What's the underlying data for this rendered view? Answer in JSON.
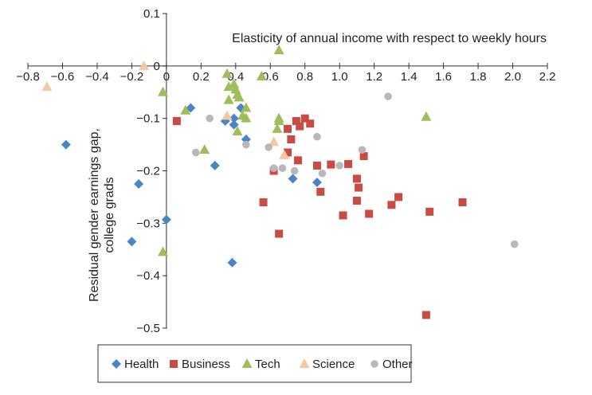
{
  "chart_data": {
    "type": "scatter",
    "title": "",
    "xlabel": "Elasticity of annual income with respect to weekly hours",
    "ylabel_lines": [
      "Residual gender earnings gap,",
      "college grads"
    ],
    "xlim": [
      -0.8,
      2.2
    ],
    "ylim": [
      -0.5,
      0.1
    ],
    "xticks": [
      "−0.8",
      "−0.6",
      "−0.4",
      "−0.2",
      "0",
      "0.2",
      "0.4",
      "0.6",
      "0.8",
      "1.0",
      "1.2",
      "1.4",
      "1.6",
      "1.8",
      "2.0",
      "2.2"
    ],
    "xtick_values": [
      -0.8,
      -0.6,
      -0.4,
      -0.2,
      0,
      0.2,
      0.4,
      0.6,
      0.8,
      1.0,
      1.2,
      1.4,
      1.6,
      1.8,
      2.0,
      2.2
    ],
    "yticks": [
      "0.1",
      "0",
      "−0.1",
      "−0.2",
      "−0.3",
      "−0.4",
      "−0.5"
    ],
    "ytick_values": [
      0.1,
      0,
      -0.1,
      -0.2,
      -0.3,
      -0.4,
      -0.5
    ],
    "grid": false,
    "legend_position": "bottom",
    "series": [
      {
        "name": "Health",
        "marker": "diamond",
        "color": "#4a86c5",
        "points": [
          [
            -0.58,
            -0.15
          ],
          [
            -0.16,
            -0.225
          ],
          [
            -0.2,
            -0.335
          ],
          [
            0.0,
            -0.293
          ],
          [
            0.14,
            -0.08
          ],
          [
            0.28,
            -0.19
          ],
          [
            0.34,
            -0.105
          ],
          [
            0.38,
            -0.375
          ],
          [
            0.39,
            -0.112
          ],
          [
            0.43,
            -0.08
          ],
          [
            0.46,
            -0.14
          ],
          [
            0.73,
            -0.215
          ],
          [
            0.87,
            -0.222
          ],
          [
            0.39,
            -0.1
          ]
        ]
      },
      {
        "name": "Business",
        "marker": "square",
        "color": "#c84b44",
        "points": [
          [
            0.06,
            -0.105
          ],
          [
            0.56,
            -0.26
          ],
          [
            0.62,
            -0.2
          ],
          [
            0.65,
            -0.32
          ],
          [
            0.7,
            -0.12
          ],
          [
            0.72,
            -0.14
          ],
          [
            0.75,
            -0.105
          ],
          [
            0.77,
            -0.115
          ],
          [
            0.8,
            -0.1
          ],
          [
            0.83,
            -0.11
          ],
          [
            0.7,
            -0.165
          ],
          [
            0.76,
            -0.18
          ],
          [
            0.87,
            -0.19
          ],
          [
            0.89,
            -0.24
          ],
          [
            0.95,
            -0.188
          ],
          [
            1.02,
            -0.285
          ],
          [
            1.05,
            -0.187
          ],
          [
            1.1,
            -0.215
          ],
          [
            1.11,
            -0.232
          ],
          [
            1.14,
            -0.172
          ],
          [
            1.17,
            -0.282
          ],
          [
            1.1,
            -0.257
          ],
          [
            1.3,
            -0.265
          ],
          [
            1.34,
            -0.25
          ],
          [
            1.5,
            -0.475
          ],
          [
            1.52,
            -0.278
          ],
          [
            1.71,
            -0.26
          ]
        ]
      },
      {
        "name": "Tech",
        "marker": "triangle",
        "color": "#9dbe5a",
        "points": [
          [
            -0.02,
            -0.355
          ],
          [
            -0.02,
            -0.05
          ],
          [
            0.11,
            -0.085
          ],
          [
            0.22,
            -0.16
          ],
          [
            0.35,
            -0.015
          ],
          [
            0.36,
            -0.04
          ],
          [
            0.36,
            -0.065
          ],
          [
            0.39,
            -0.035
          ],
          [
            0.4,
            -0.045
          ],
          [
            0.41,
            -0.055
          ],
          [
            0.42,
            -0.06
          ],
          [
            0.41,
            -0.125
          ],
          [
            0.44,
            -0.095
          ],
          [
            0.46,
            -0.08
          ],
          [
            0.46,
            -0.1
          ],
          [
            0.55,
            -0.02
          ],
          [
            0.64,
            -0.12
          ],
          [
            0.65,
            -0.1
          ],
          [
            0.65,
            -0.105
          ],
          [
            0.65,
            0.03
          ],
          [
            1.5,
            -0.097
          ]
        ]
      },
      {
        "name": "Science",
        "marker": "triangle",
        "color": "#f5c8a0",
        "points": [
          [
            -0.69,
            -0.04
          ],
          [
            -0.13,
            0.0
          ],
          [
            0.35,
            -0.095
          ],
          [
            0.62,
            -0.145
          ],
          [
            0.68,
            -0.17
          ]
        ]
      },
      {
        "name": "Other",
        "marker": "circle",
        "color": "#b8b8b8",
        "points": [
          [
            0.17,
            -0.165
          ],
          [
            0.25,
            -0.1
          ],
          [
            0.46,
            -0.15
          ],
          [
            0.59,
            -0.155
          ],
          [
            0.62,
            -0.195
          ],
          [
            0.67,
            -0.195
          ],
          [
            0.74,
            -0.2
          ],
          [
            0.87,
            -0.135
          ],
          [
            0.9,
            -0.205
          ],
          [
            1.0,
            -0.19
          ],
          [
            1.13,
            -0.16
          ],
          [
            1.28,
            -0.058
          ],
          [
            2.01,
            -0.34
          ]
        ]
      }
    ]
  }
}
